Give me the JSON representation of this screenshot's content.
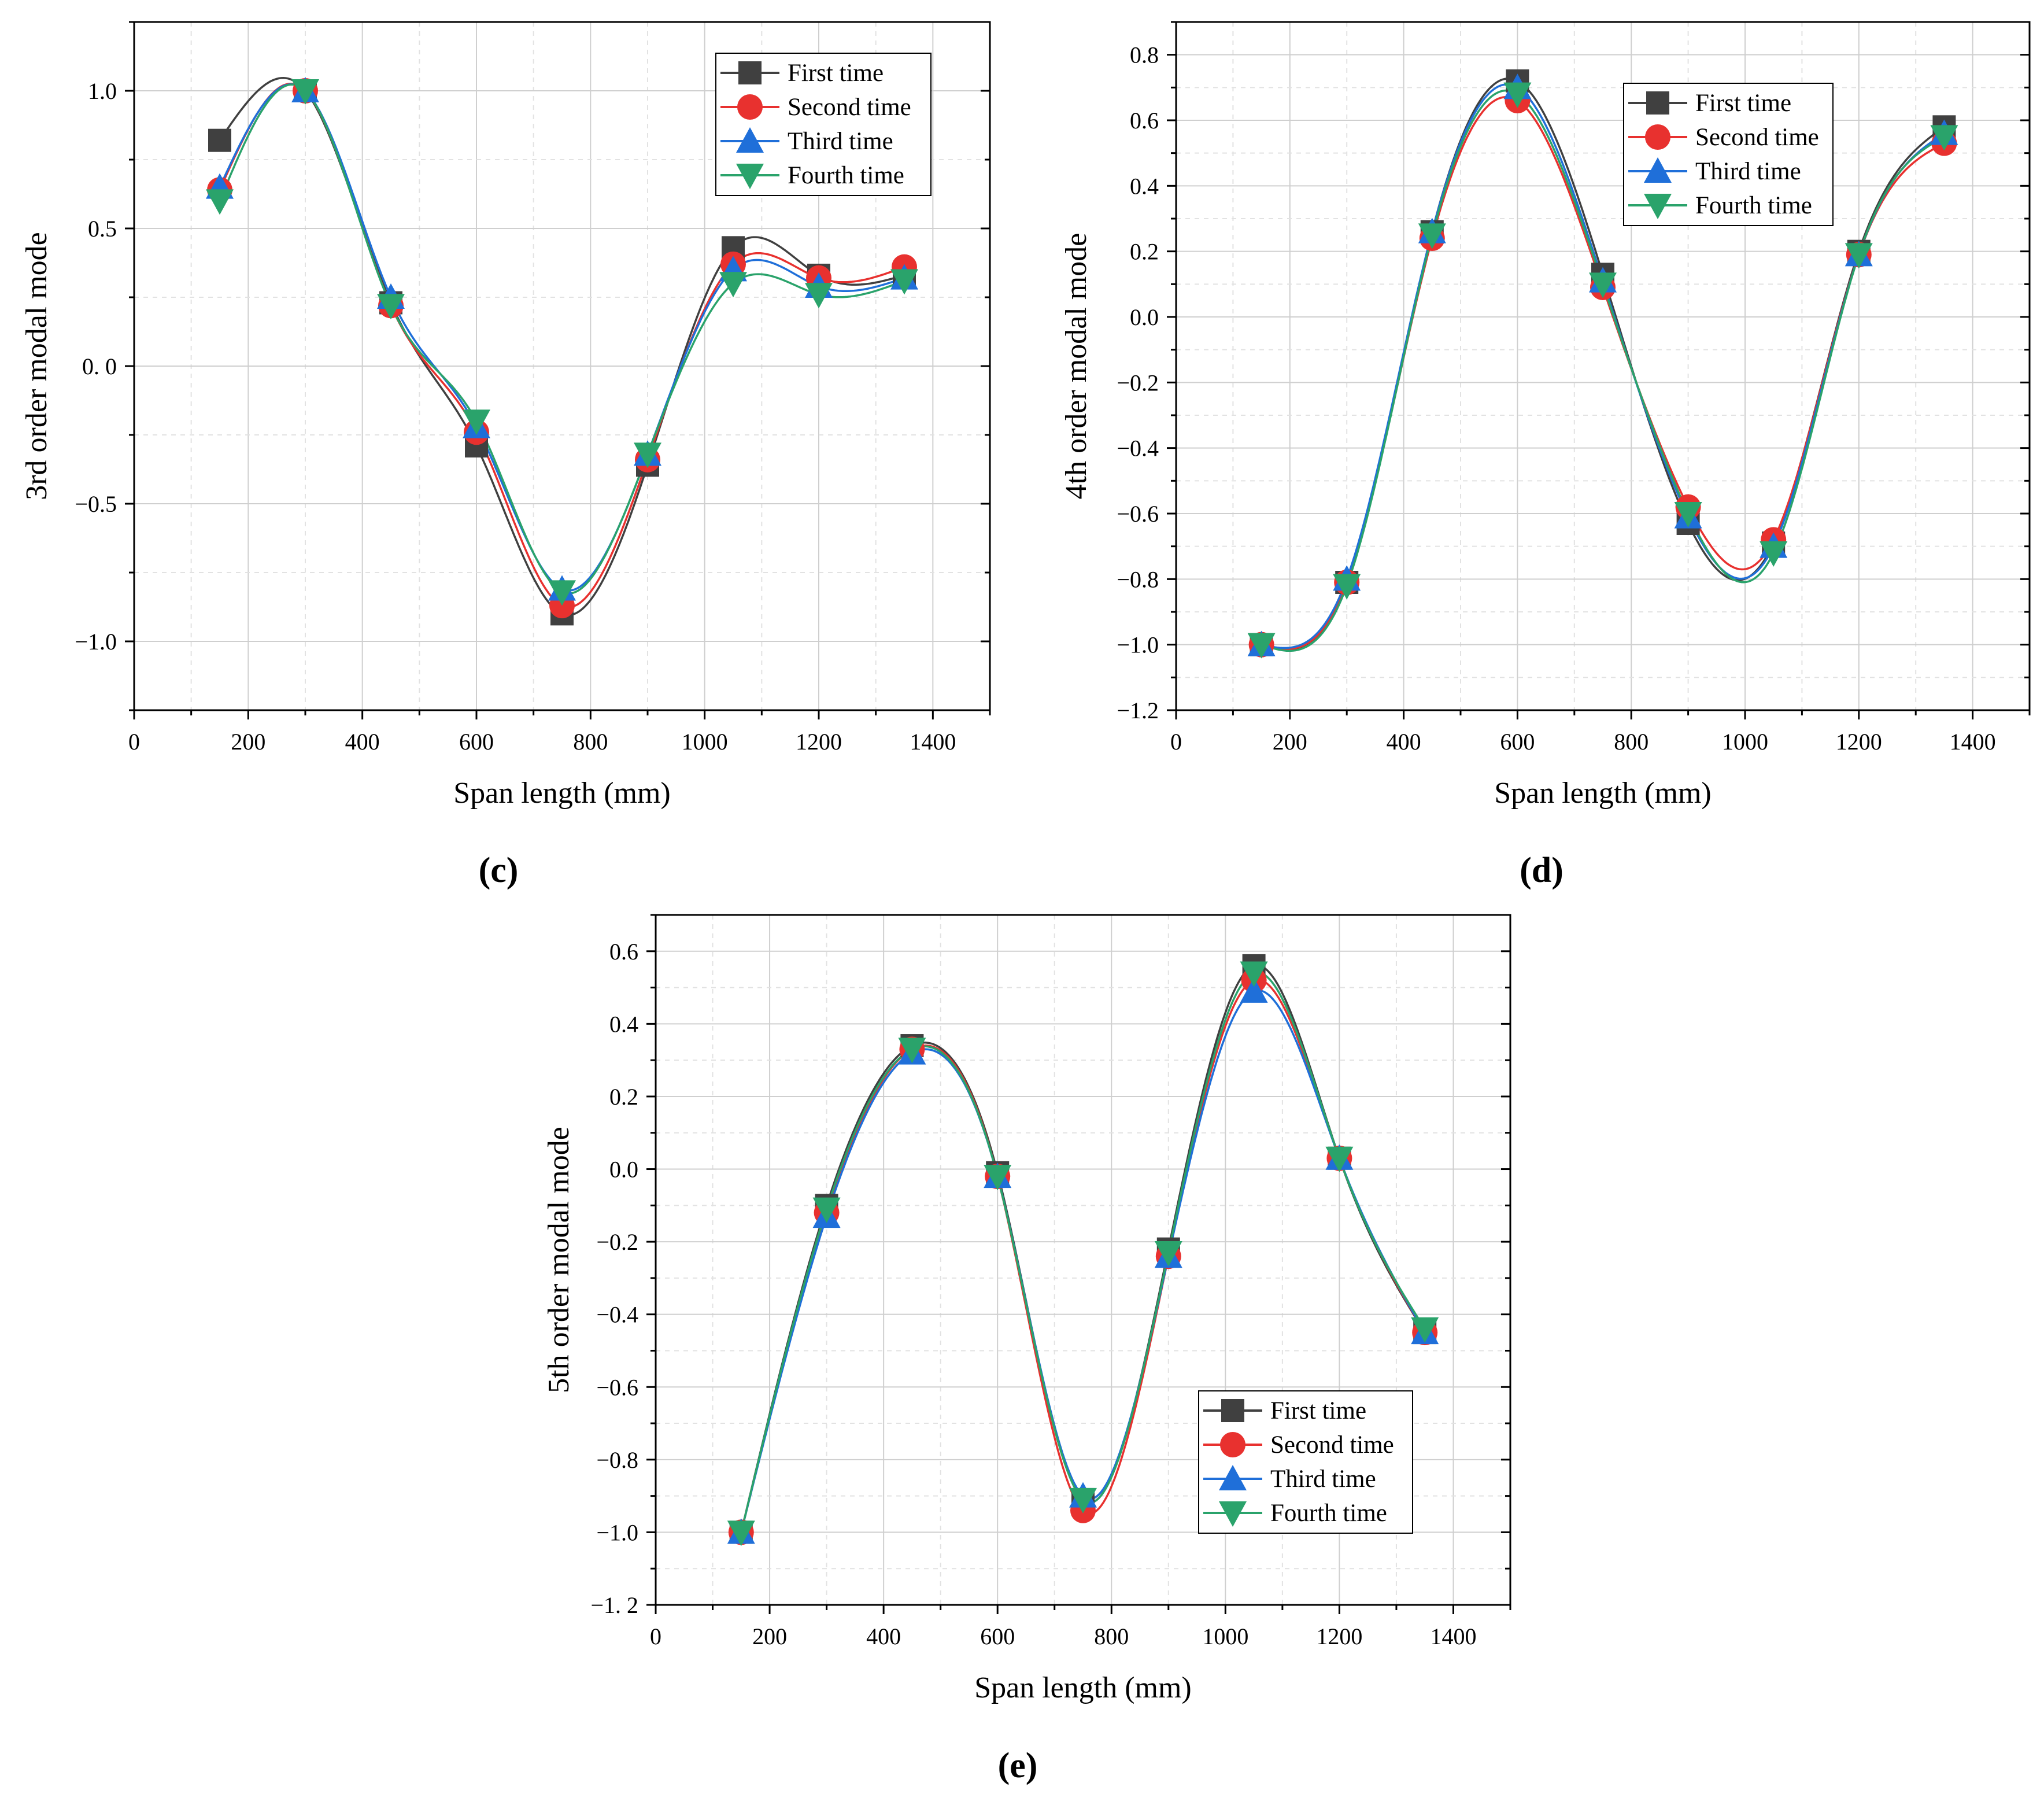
{
  "figure": {
    "panels": [
      "(c)",
      "(d)",
      "(e)"
    ]
  },
  "chart_data": [
    {
      "type": "line",
      "panel_label": "(c)",
      "title": "",
      "xlabel": "Span length (mm)",
      "ylabel": "3rd order modal mode",
      "xlim": [
        0,
        1500
      ],
      "ylim": [
        -1.25,
        1.25
      ],
      "xticks": [
        0,
        200,
        400,
        600,
        800,
        1000,
        1200,
        1400
      ],
      "yticks": [
        -1.0,
        -0.5,
        0.0,
        0.5,
        1.0
      ],
      "ytick_labels": [
        "−1.0",
        "−0.5",
        "0. 0",
        "0.5",
        "1.0"
      ],
      "grid": true,
      "legend_position": "top-right",
      "x": [
        150,
        300,
        450,
        600,
        750,
        900,
        1050,
        1200,
        1350
      ],
      "series": [
        {
          "name": "First time",
          "color": "#404040",
          "marker": "square",
          "values": [
            0.82,
            1.0,
            0.23,
            -0.29,
            -0.9,
            -0.36,
            0.43,
            0.33,
            0.33
          ]
        },
        {
          "name": "Second time",
          "color": "#e8312f",
          "marker": "circle",
          "values": [
            0.64,
            1.0,
            0.22,
            -0.24,
            -0.87,
            -0.34,
            0.37,
            0.32,
            0.36
          ]
        },
        {
          "name": "Third time",
          "color": "#1f6fd9",
          "marker": "triangle-up",
          "values": [
            0.65,
            1.0,
            0.25,
            -0.22,
            -0.81,
            -0.32,
            0.35,
            0.29,
            0.32
          ]
        },
        {
          "name": "Fourth time",
          "color": "#2aa36b",
          "marker": "triangle-down",
          "values": [
            0.6,
            1.0,
            0.22,
            -0.2,
            -0.82,
            -0.32,
            0.3,
            0.26,
            0.31
          ]
        }
      ]
    },
    {
      "type": "line",
      "panel_label": "(d)",
      "title": "",
      "xlabel": "Span length (mm)",
      "ylabel": "4th order modal mode",
      "xlim": [
        0,
        1500
      ],
      "ylim": [
        -1.2,
        0.9
      ],
      "xticks": [
        0,
        200,
        400,
        600,
        800,
        1000,
        1200,
        1400
      ],
      "yticks": [
        -1.2,
        -1.0,
        -0.8,
        -0.6,
        -0.4,
        -0.2,
        0.0,
        0.2,
        0.4,
        0.6,
        0.8
      ],
      "ytick_labels": [
        "−1.2",
        "−1.0",
        "−0.8",
        "−0.6",
        "−0.4",
        "−0.2",
        "0.0",
        "0.2",
        "0.4",
        "0.6",
        "0.8"
      ],
      "grid": true,
      "legend_position": "top-center",
      "x": [
        150,
        300,
        450,
        600,
        750,
        900,
        1050,
        1200,
        1350
      ],
      "series": [
        {
          "name": "First time",
          "color": "#404040",
          "marker": "square",
          "values": [
            -1.0,
            -0.81,
            0.26,
            0.72,
            0.13,
            -0.63,
            -0.69,
            0.2,
            0.58
          ]
        },
        {
          "name": "Second time",
          "color": "#e8312f",
          "marker": "circle",
          "values": [
            -1.0,
            -0.81,
            0.24,
            0.66,
            0.09,
            -0.58,
            -0.68,
            0.19,
            0.53
          ]
        },
        {
          "name": "Third time",
          "color": "#1f6fd9",
          "marker": "triangle-up",
          "values": [
            -1.0,
            -0.8,
            0.26,
            0.7,
            0.11,
            -0.61,
            -0.7,
            0.19,
            0.56
          ]
        },
        {
          "name": "Fourth time",
          "color": "#2aa36b",
          "marker": "triangle-down",
          "values": [
            -1.0,
            -0.82,
            0.25,
            0.68,
            0.1,
            -0.6,
            -0.72,
            0.19,
            0.55
          ]
        }
      ]
    },
    {
      "type": "line",
      "panel_label": "(e)",
      "title": "",
      "xlabel": "Span length (mm)",
      "ylabel": "5th order modal mode",
      "xlim": [
        0,
        1500
      ],
      "ylim": [
        -1.2,
        0.7
      ],
      "xticks": [
        0,
        200,
        400,
        600,
        800,
        1000,
        1200,
        1400
      ],
      "yticks": [
        -1.2,
        -1.0,
        -0.8,
        -0.6,
        -0.4,
        -0.2,
        0.0,
        0.2,
        0.4,
        0.6
      ],
      "ytick_labels": [
        "−1. 2",
        "−1.0",
        "−0.8",
        "−0.6",
        "−0.4",
        "−0.2",
        "0.0",
        "0.2",
        "0.4",
        "0.6"
      ],
      "grid": true,
      "legend_position": "bottom-right",
      "x": [
        150,
        300,
        450,
        600,
        750,
        900,
        1050,
        1200,
        1350
      ],
      "series": [
        {
          "name": "First time",
          "color": "#404040",
          "marker": "square",
          "values": [
            -1.0,
            -0.1,
            0.34,
            -0.01,
            -0.91,
            -0.22,
            0.56,
            0.03,
            -0.45
          ]
        },
        {
          "name": "Second time",
          "color": "#e8312f",
          "marker": "circle",
          "values": [
            -1.0,
            -0.12,
            0.33,
            -0.02,
            -0.94,
            -0.24,
            0.52,
            0.03,
            -0.45
          ]
        },
        {
          "name": "Third time",
          "color": "#1f6fd9",
          "marker": "triangle-up",
          "values": [
            -1.0,
            -0.13,
            0.32,
            -0.02,
            -0.9,
            -0.24,
            0.49,
            0.03,
            -0.45
          ]
        },
        {
          "name": "Fourth time",
          "color": "#2aa36b",
          "marker": "triangle-down",
          "values": [
            -1.0,
            -0.11,
            0.33,
            -0.02,
            -0.91,
            -0.23,
            0.54,
            0.03,
            -0.44
          ]
        }
      ]
    }
  ]
}
